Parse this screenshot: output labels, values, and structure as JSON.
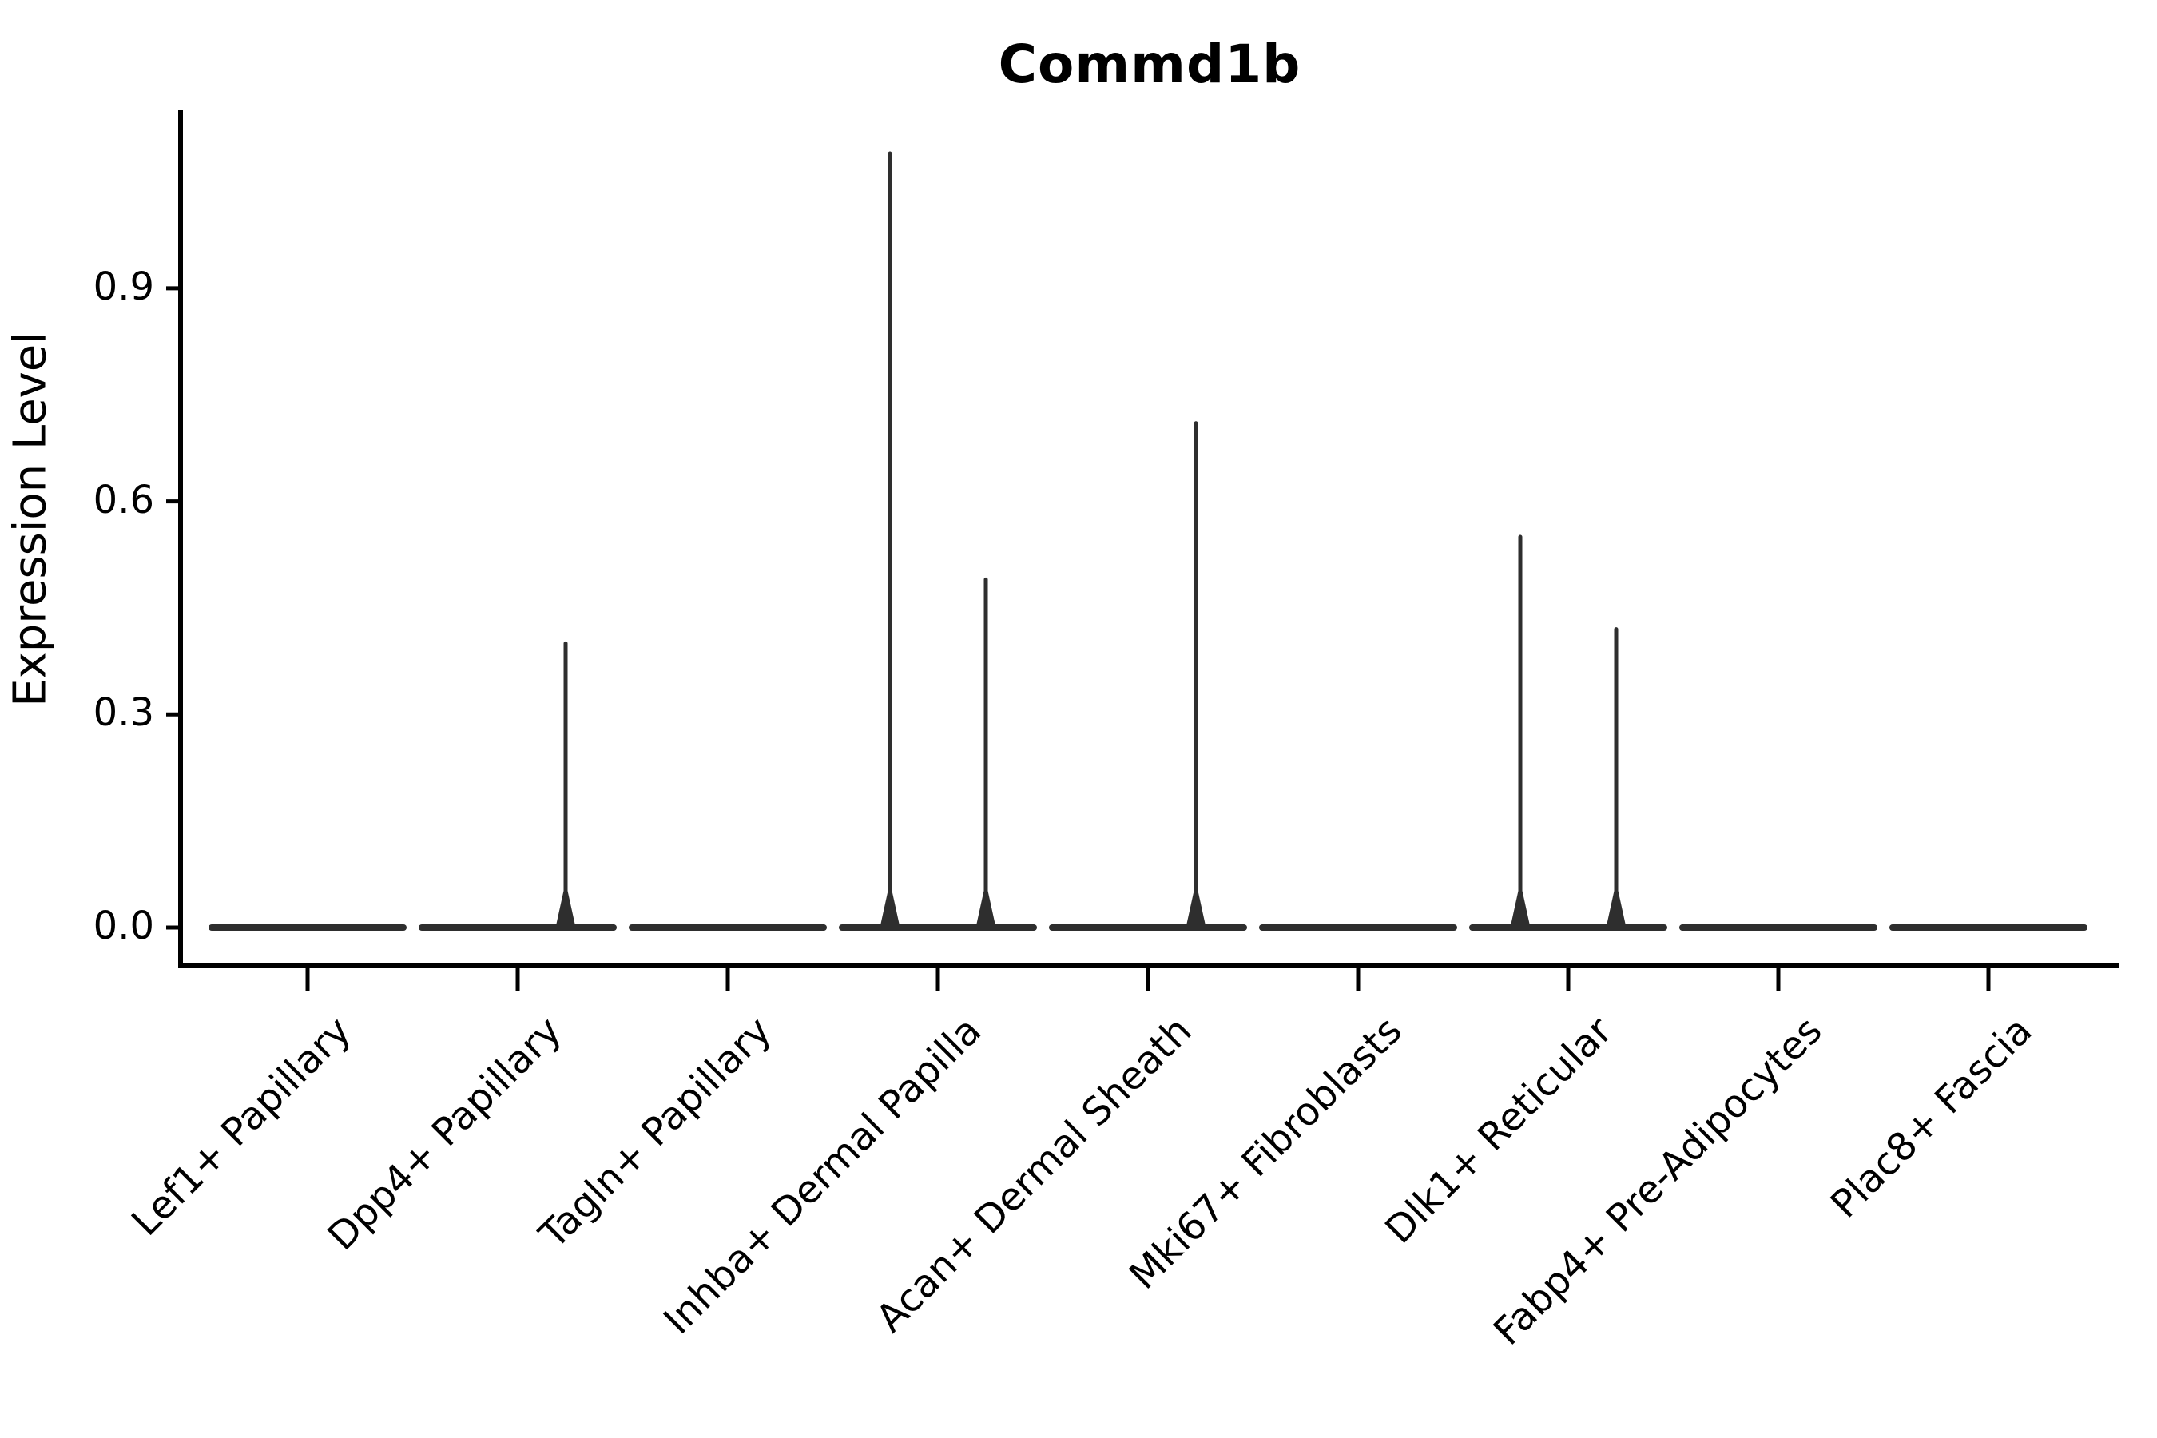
{
  "figure": {
    "background": "#ffffff"
  },
  "chart_data": {
    "type": "violin",
    "title": "Commd1b",
    "ylabel": "Expression Level",
    "xlabel": "",
    "ylim": [
      0,
      1.15
    ],
    "ytick_labels": [
      "0.0",
      "0.3",
      "0.6",
      "0.9"
    ],
    "ytick_values": [
      0,
      0.3,
      0.6,
      0.9
    ],
    "grid": false,
    "legend": "none",
    "categories": [
      "Lef1+ Papillary",
      "Dpp4+ Papillary",
      "Tagln+ Papillary",
      "Inhba+ Dermal Papilla",
      "Acan+ Dermal Sheath",
      "Mki67+ Fibroblasts",
      "Dlk1+ Reticular",
      "Fabp4+ Pre-Adipocytes",
      "Plac8+ Fascia"
    ],
    "violins": [
      {
        "category": "Lef1+ Papillary",
        "baseline_value": 0,
        "spikes": []
      },
      {
        "category": "Dpp4+ Papillary",
        "baseline_value": 0,
        "spikes": [
          {
            "side": "right",
            "peak": 0.4
          }
        ]
      },
      {
        "category": "Tagln+ Papillary",
        "baseline_value": 0,
        "spikes": []
      },
      {
        "category": "Inhba+ Dermal Papilla",
        "baseline_value": 0,
        "spikes": [
          {
            "side": "left",
            "peak": 1.09
          },
          {
            "side": "right",
            "peak": 0.49
          }
        ]
      },
      {
        "category": "Acan+ Dermal Sheath",
        "baseline_value": 0,
        "spikes": [
          {
            "side": "right",
            "peak": 0.71
          }
        ]
      },
      {
        "category": "Mki67+ Fibroblasts",
        "baseline_value": 0,
        "spikes": []
      },
      {
        "category": "Dlk1+ Reticular",
        "baseline_value": 0,
        "spikes": [
          {
            "side": "left",
            "peak": 0.55
          },
          {
            "side": "right",
            "peak": 0.42
          }
        ]
      },
      {
        "category": "Fabp4+ Pre-Adipocytes",
        "baseline_value": 0,
        "spikes": []
      },
      {
        "category": "Plac8+ Fascia",
        "baseline_value": 0,
        "spikes": []
      }
    ],
    "colors": {
      "violin_line": "#2e2e2e",
      "axis": "#000000",
      "text": "#000000"
    }
  }
}
